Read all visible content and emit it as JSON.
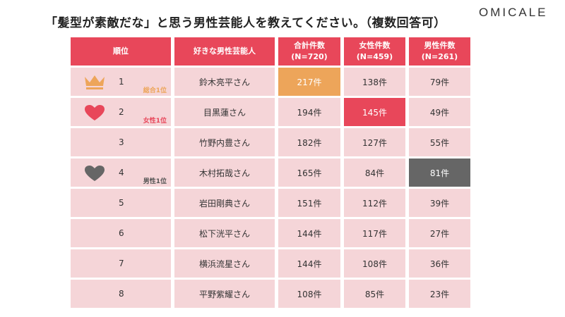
{
  "title": "「髪型が素敵だな」と思う男性芸能人を教えてください。（複数回答可）",
  "logo": "OMICALE",
  "colors": {
    "header": "#e8475a",
    "row": "#f5d5d8",
    "total_top": "#eda55a",
    "female_top": "#e8475a",
    "male_top": "#666666"
  },
  "chart_data": {
    "type": "table",
    "columns": [
      "順位",
      "好きな男性芸能人",
      "合計件数\n(N=720)",
      "女性件数\n(N=459)",
      "男性件数\n(N=261)"
    ],
    "rows": [
      {
        "rank": "1",
        "name": "鈴木亮平さん",
        "total": "217件",
        "female": "138件",
        "male": "79件",
        "badge": "総合1位",
        "icon": "crown-icon"
      },
      {
        "rank": "2",
        "name": "目黒蓮さん",
        "total": "194件",
        "female": "145件",
        "male": "49件",
        "badge": "女性1位",
        "icon": "heart-icon"
      },
      {
        "rank": "3",
        "name": "竹野内豊さん",
        "total": "182件",
        "female": "127件",
        "male": "55件"
      },
      {
        "rank": "4",
        "name": "木村拓哉さん",
        "total": "165件",
        "female": "84件",
        "male": "81件",
        "badge": "男性1位",
        "icon": "heart-icon"
      },
      {
        "rank": "5",
        "name": "岩田剛典さん",
        "total": "151件",
        "female": "112件",
        "male": "39件"
      },
      {
        "rank": "6",
        "name": "松下洸平さん",
        "total": "144件",
        "female": "117件",
        "male": "27件"
      },
      {
        "rank": "7",
        "name": "横浜流星さん",
        "total": "144件",
        "female": "108件",
        "male": "36件"
      },
      {
        "rank": "8",
        "name": "平野紫耀さん",
        "total": "108件",
        "female": "85件",
        "male": "23件"
      }
    ]
  }
}
